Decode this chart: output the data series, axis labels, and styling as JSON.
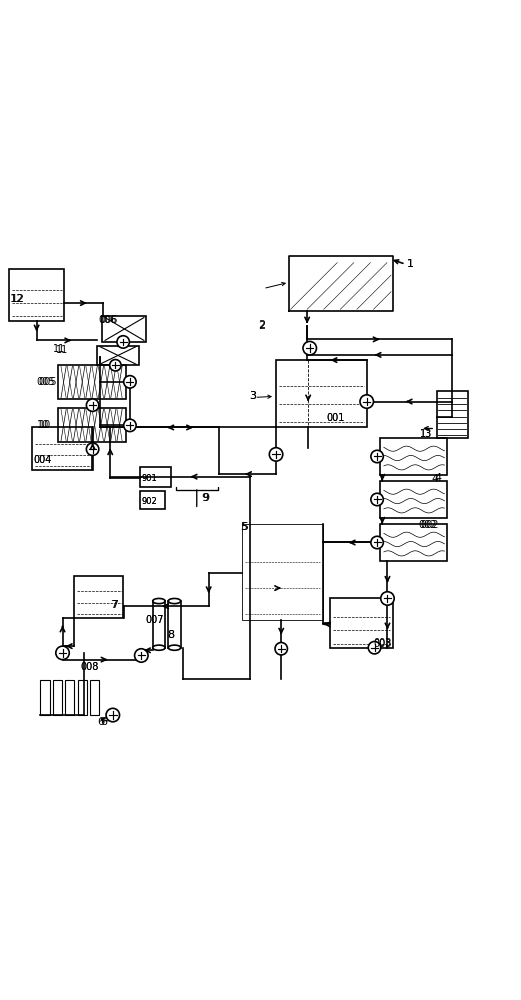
{
  "bg_color": "#ffffff",
  "line_color": "#000000",
  "line_width": 1.2,
  "fig_width": 5.21,
  "fig_height": 10.0
}
